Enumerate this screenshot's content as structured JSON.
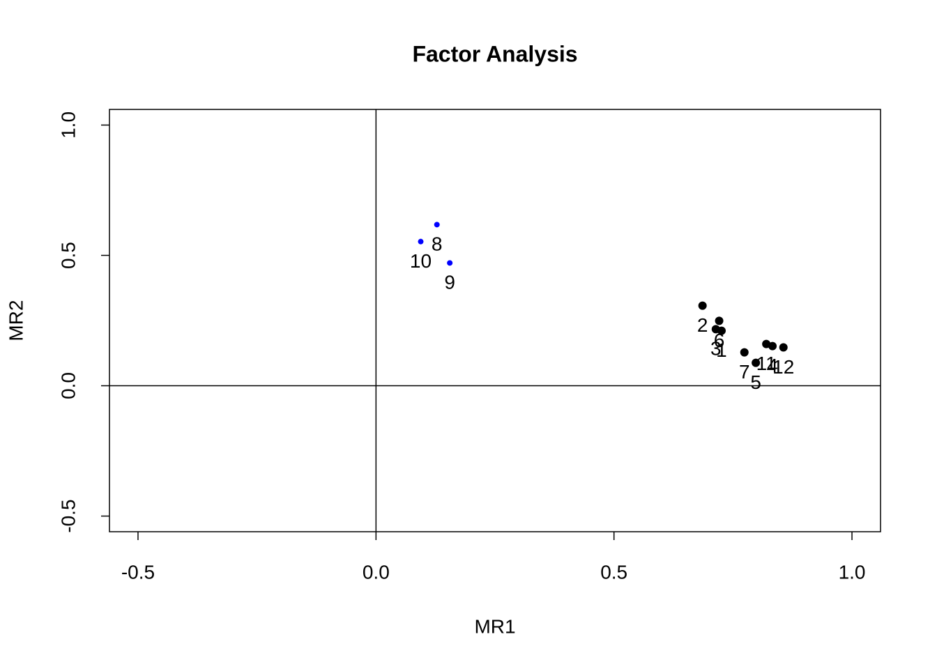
{
  "chart_data": {
    "type": "scatter",
    "title": "Factor Analysis",
    "x_label": "MR1",
    "y_label": "MR2",
    "xlim": [
      -0.56,
      1.06
    ],
    "ylim": [
      -0.56,
      1.06
    ],
    "xticks": [
      -0.5,
      {
        "value": 0,
        "label": "0.0"
      },
      0.5,
      {
        "value": 1,
        "label": "1.0"
      }
    ],
    "yticks": [
      -0.5,
      {
        "value": 0,
        "label": "0.0"
      },
      0.5,
      {
        "value": 1,
        "label": "1.0"
      }
    ],
    "hline": 0,
    "vline": 0,
    "series": [
      {
        "color": "#000000",
        "labels": [
          "1",
          "2",
          "3",
          "4",
          "5",
          "6",
          "7",
          "11",
          "12"
        ],
        "x": [
          0.726,
          0.686,
          0.714,
          0.833,
          0.798,
          0.721,
          0.774,
          0.82,
          0.856
        ],
        "values": [
          0.211,
          0.307,
          0.217,
          0.152,
          0.088,
          0.249,
          0.128,
          0.16,
          0.147
        ]
      },
      {
        "color": "#0000ff",
        "labels": [
          "8",
          "9",
          "10"
        ],
        "x": [
          0.128,
          0.155,
          0.094
        ],
        "values": [
          0.618,
          0.471,
          0.553
        ]
      }
    ]
  }
}
